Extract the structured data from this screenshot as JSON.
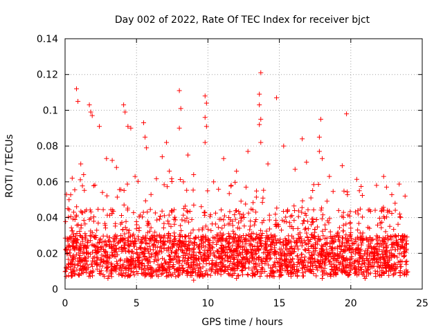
{
  "chart_data": {
    "type": "scatter",
    "title": "Day 002 of 2022, Rate Of TEC Index for receiver bjct",
    "xlabel": "GPS time / hours",
    "ylabel": "ROTI / TECUs",
    "xlim": [
      0,
      25
    ],
    "ylim": [
      0,
      0.14
    ],
    "xticks": [
      0,
      5,
      10,
      15,
      20,
      25
    ],
    "xtick_labels": [
      "0",
      "5",
      "10",
      "15",
      "20",
      "25"
    ],
    "yticks": [
      0,
      0.02,
      0.04,
      0.06,
      0.08,
      0.1,
      0.12,
      0.14
    ],
    "ytick_labels": [
      "0",
      "0.02",
      "0.04",
      "0.06",
      "0.08",
      "0.1",
      "0.12",
      "0.14"
    ],
    "grid": true,
    "marker": "+",
    "color": "#ff0000",
    "series": [
      {
        "name": "ROTI",
        "points": [
          [
            0.8,
            0.112
          ],
          [
            0.9,
            0.105
          ],
          [
            1.7,
            0.103
          ],
          [
            1.8,
            0.099
          ],
          [
            1.9,
            0.097
          ],
          [
            2.4,
            0.091
          ],
          [
            4.1,
            0.103
          ],
          [
            4.2,
            0.099
          ],
          [
            4.4,
            0.091
          ],
          [
            4.6,
            0.09
          ],
          [
            5.5,
            0.093
          ],
          [
            5.6,
            0.085
          ],
          [
            5.7,
            0.079
          ],
          [
            7.1,
            0.082
          ],
          [
            8.0,
            0.111
          ],
          [
            8.1,
            0.101
          ],
          [
            8.0,
            0.09
          ],
          [
            9.8,
            0.108
          ],
          [
            9.9,
            0.104
          ],
          [
            9.8,
            0.096
          ],
          [
            9.9,
            0.091
          ],
          [
            9.8,
            0.082
          ],
          [
            13.7,
            0.121
          ],
          [
            13.6,
            0.109
          ],
          [
            13.6,
            0.103
          ],
          [
            13.7,
            0.095
          ],
          [
            13.6,
            0.092
          ],
          [
            13.7,
            0.082
          ],
          [
            14.8,
            0.107
          ],
          [
            15.3,
            0.08
          ],
          [
            16.6,
            0.084
          ],
          [
            17.9,
            0.095
          ],
          [
            17.8,
            0.085
          ],
          [
            17.8,
            0.077
          ],
          [
            18.0,
            0.073
          ],
          [
            19.7,
            0.098
          ],
          [
            11.1,
            0.073
          ],
          [
            12.8,
            0.077
          ],
          [
            8.6,
            0.075
          ],
          [
            6.8,
            0.074
          ],
          [
            2.9,
            0.073
          ],
          [
            3.3,
            0.072
          ],
          [
            1.1,
            0.07
          ],
          [
            0.1,
            0.053
          ],
          [
            0.2,
            0.045
          ],
          [
            0.5,
            0.062
          ],
          [
            1.3,
            0.064
          ],
          [
            3.6,
            0.068
          ],
          [
            4.9,
            0.063
          ],
          [
            7.3,
            0.066
          ],
          [
            9.0,
            0.064
          ],
          [
            10.4,
            0.06
          ],
          [
            12.0,
            0.066
          ],
          [
            14.2,
            0.07
          ],
          [
            16.1,
            0.067
          ],
          [
            16.9,
            0.071
          ],
          [
            18.5,
            0.063
          ],
          [
            19.4,
            0.069
          ],
          [
            20.6,
            0.055
          ],
          [
            21.8,
            0.058
          ],
          [
            22.3,
            0.063
          ],
          [
            22.5,
            0.057
          ],
          [
            23.1,
            0.048
          ],
          [
            23.8,
            0.052
          ],
          [
            0.05,
            0.01
          ],
          [
            1.0,
            0.008
          ],
          [
            3.0,
            0.006
          ],
          [
            6.0,
            0.007
          ],
          [
            9.0,
            0.005
          ],
          [
            12.0,
            0.006
          ],
          [
            15.0,
            0.007
          ],
          [
            18.0,
            0.006
          ],
          [
            21.0,
            0.006
          ],
          [
            23.9,
            0.008
          ]
        ]
      }
    ],
    "density_summary": [
      {
        "hours": [
          0,
          5
        ],
        "typical_range": [
          0.005,
          0.05
        ]
      },
      {
        "hours": [
          5,
          10
        ],
        "typical_range": [
          0.005,
          0.055
        ]
      },
      {
        "hours": [
          10,
          15
        ],
        "typical_range": [
          0.005,
          0.05
        ]
      },
      {
        "hours": [
          15,
          20
        ],
        "typical_range": [
          0.005,
          0.055
        ]
      },
      {
        "hours": [
          20,
          24
        ],
        "typical_range": [
          0.005,
          0.045
        ]
      }
    ]
  }
}
